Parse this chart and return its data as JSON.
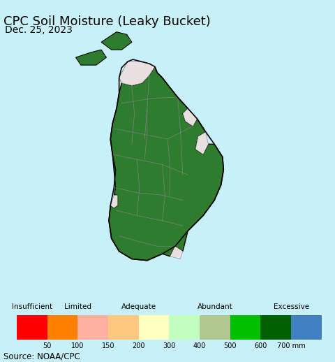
{
  "title": "CPC Soil Moisture (Leaky Bucket)",
  "date_label": "Dec. 25, 2023",
  "source_label": "Source: NOAA/CPC",
  "background_color": "#c8f0f8",
  "map_bg": "#c8f0f8",
  "legend_bg": "#ffffff",
  "main_land_color": "#2e7d2e",
  "light_area_color": "#e8e0e0",
  "border_color": "#808080",
  "outline_color": "#000000",
  "india_color": "#c8f0f8",
  "colorbar_colors": [
    "#ff0000",
    "#ff8000",
    "#ffb0a0",
    "#ffc880",
    "#ffffc0",
    "#c0ffc0",
    "#b0c890",
    "#00c000",
    "#006000",
    "#4080c0"
  ],
  "cat_labels": [
    "Insufficient",
    "Limited",
    "Adequate",
    "Abundant",
    "Excessive"
  ],
  "tick_labels": [
    "50",
    "100",
    "150",
    "200",
    "300",
    "400",
    "500",
    "600",
    "700 mm"
  ],
  "title_fontsize": 13,
  "date_fontsize": 10,
  "source_fontsize": 8.5
}
